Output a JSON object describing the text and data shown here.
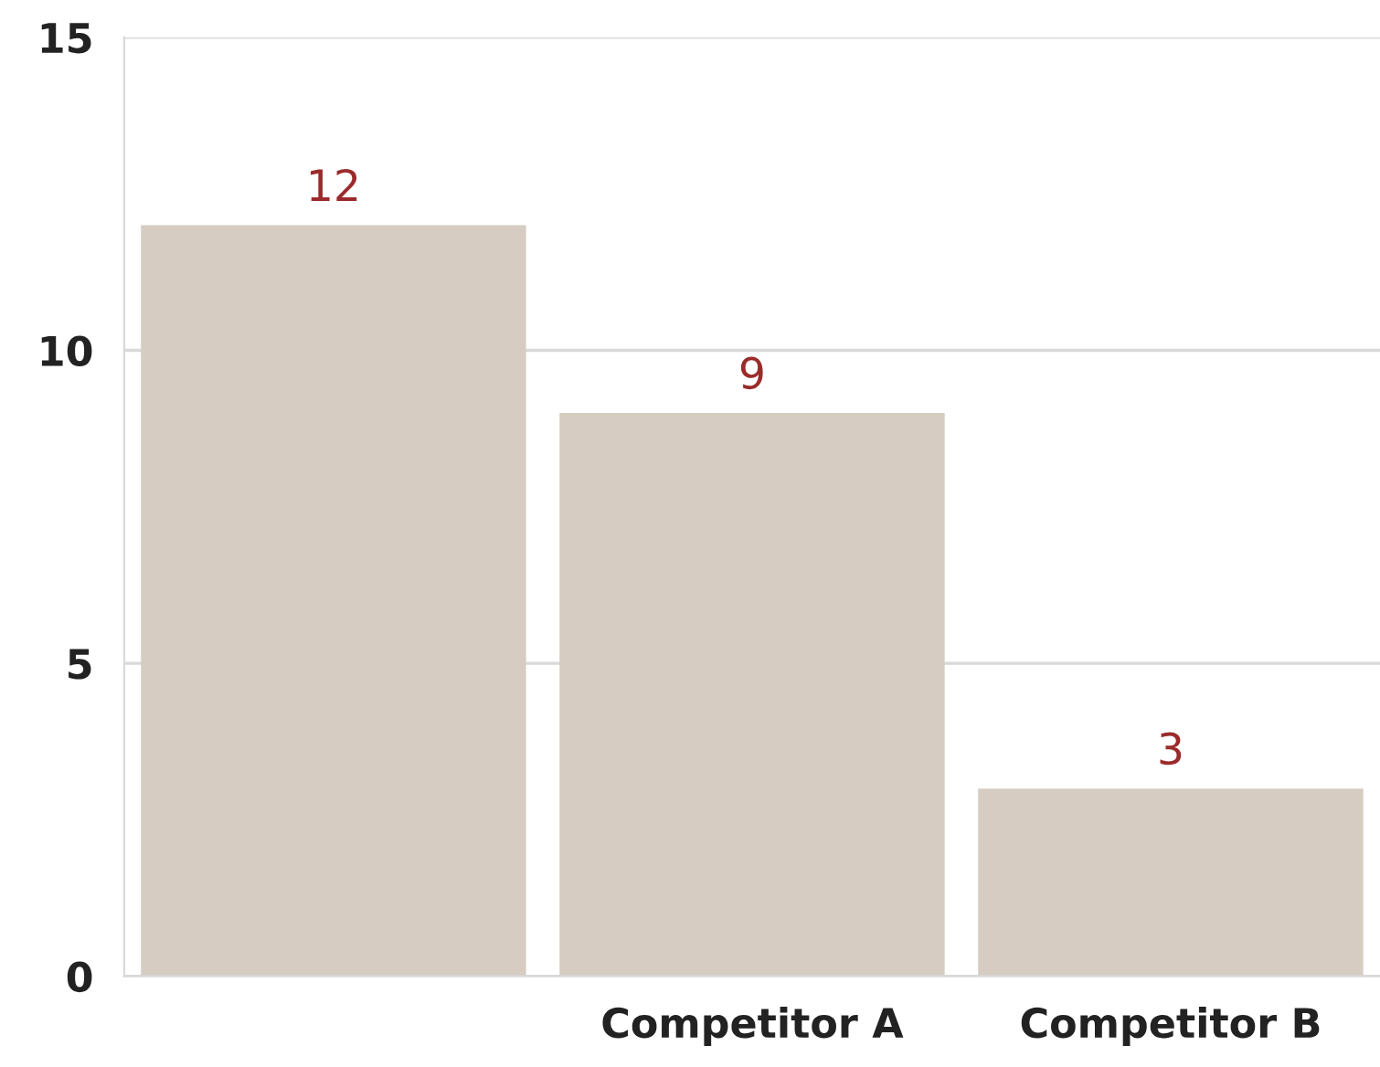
{
  "chart_data": {
    "type": "bar",
    "categories": [
      null,
      "Competitor A",
      "Competitor B"
    ],
    "values": [
      12,
      9,
      3
    ],
    "color": "#d6ccc2",
    "data_labels": true,
    "ylim": [
      0,
      15
    ],
    "yticks": [
      0,
      5,
      10,
      15
    ],
    "grid": "y"
  }
}
